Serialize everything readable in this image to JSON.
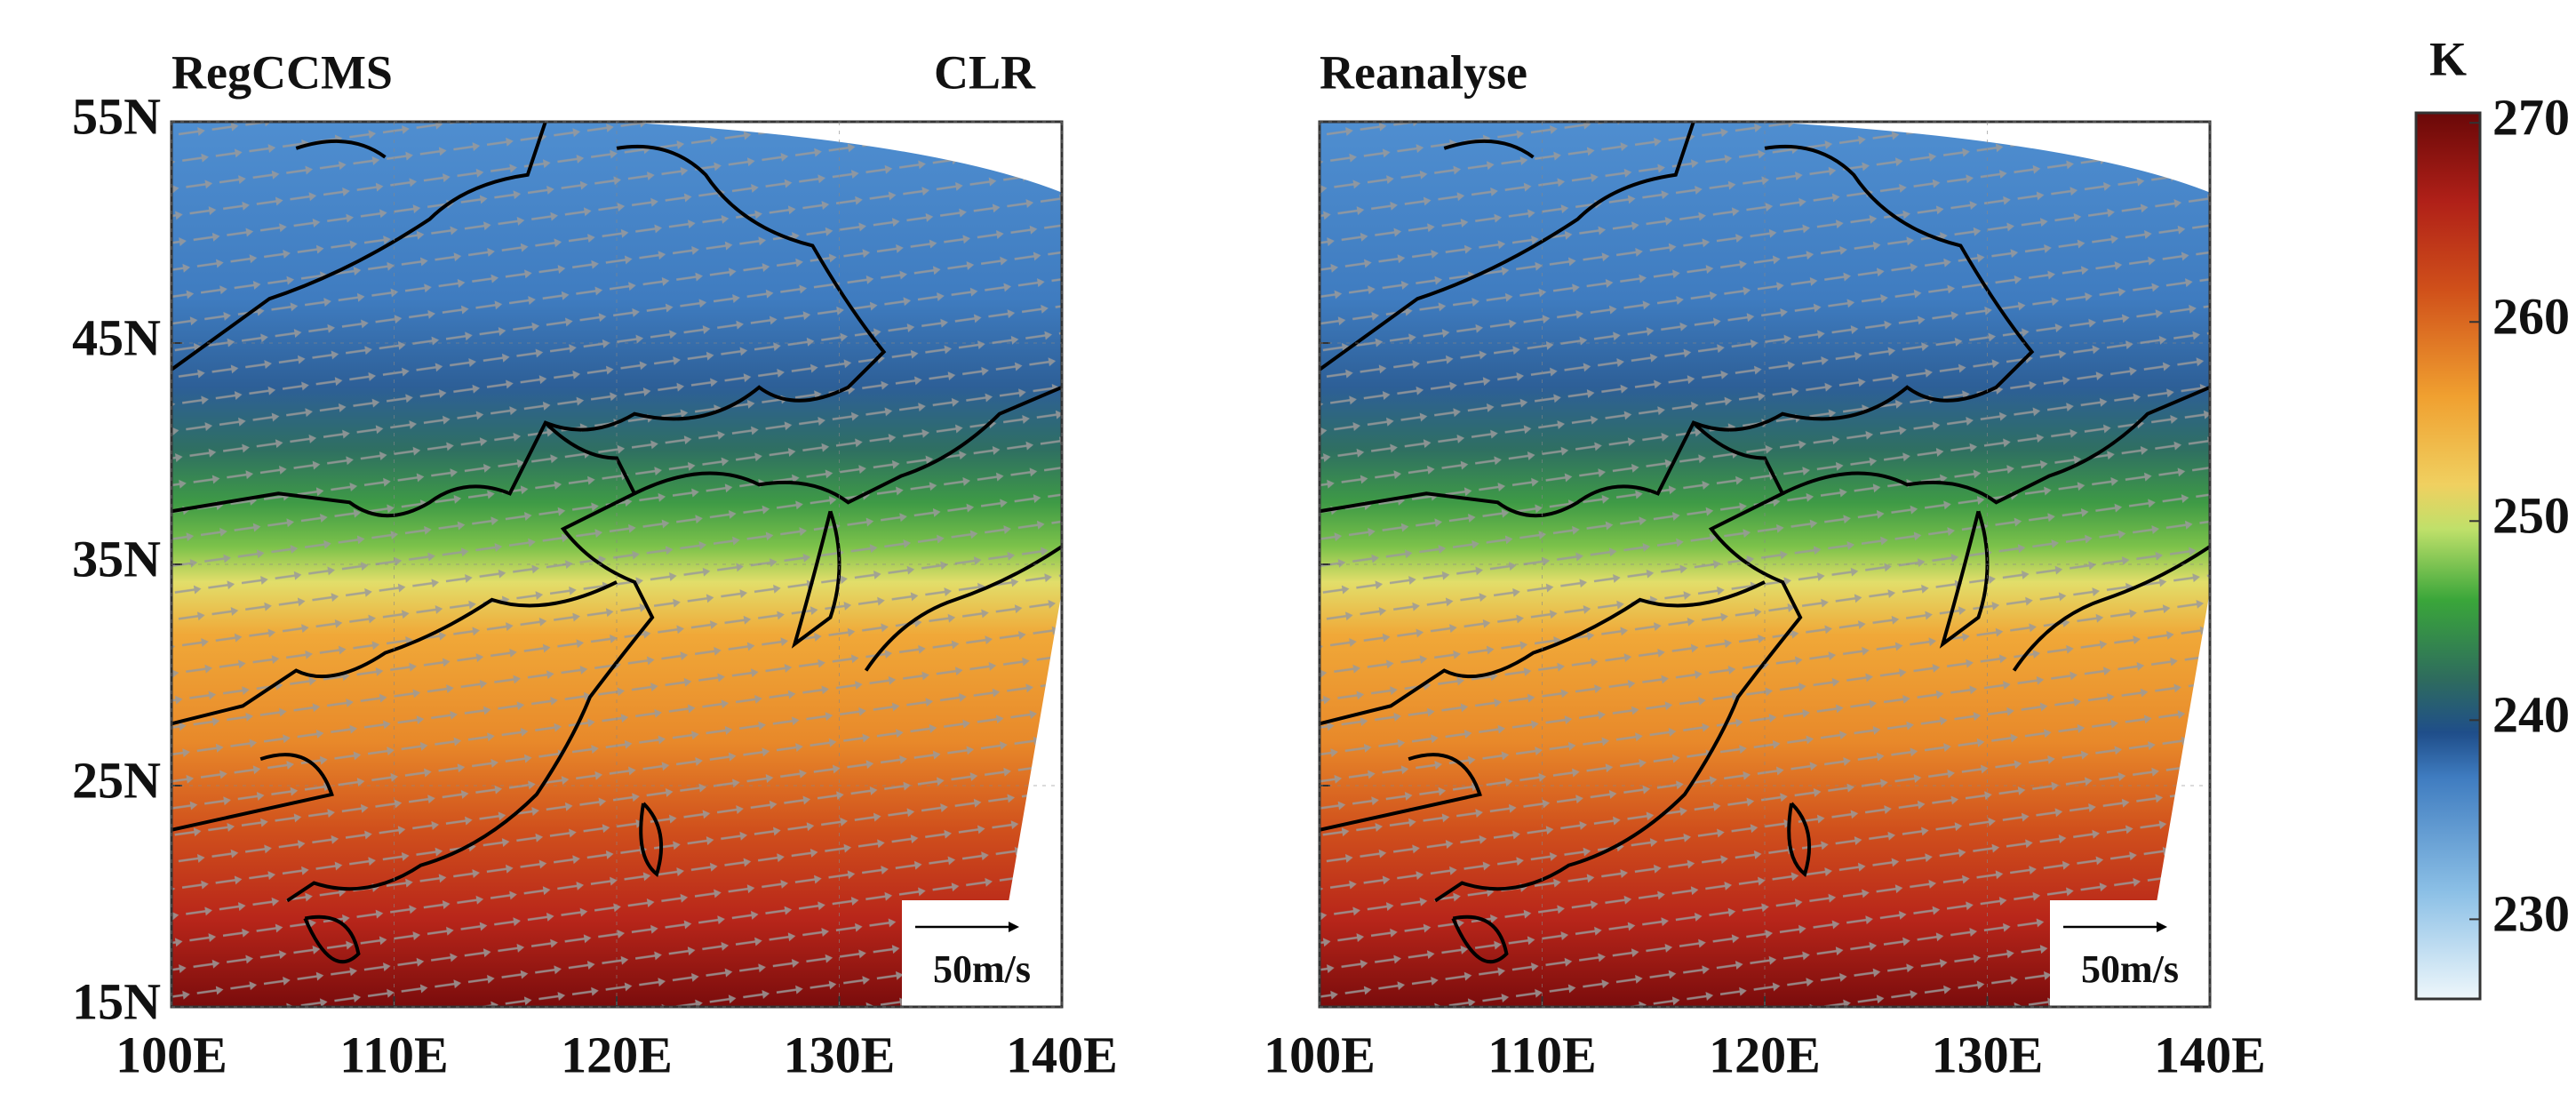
{
  "panels": [
    {
      "title": "RegCCMS",
      "label": "CLR"
    },
    {
      "title": "Reanalyse"
    }
  ],
  "xlim": [
    100,
    140
  ],
  "ylim": [
    15,
    55
  ],
  "xticks": [
    {
      "value": 100,
      "label": "100E"
    },
    {
      "value": 110,
      "label": "110E"
    },
    {
      "value": 120,
      "label": "120E"
    },
    {
      "value": 130,
      "label": "130E"
    },
    {
      "value": 140,
      "label": "140E"
    }
  ],
  "yticks": [
    {
      "value": 15,
      "label": "15N"
    },
    {
      "value": 25,
      "label": "25N"
    },
    {
      "value": 35,
      "label": "35N"
    },
    {
      "value": 45,
      "label": "45N"
    },
    {
      "value": 55,
      "label": "55N"
    }
  ],
  "scale_label": "50m/s",
  "colorbar": {
    "label": "K",
    "lim": [
      226,
      270.5
    ],
    "ticks": [
      230,
      240,
      250,
      260,
      270
    ]
  }
}
